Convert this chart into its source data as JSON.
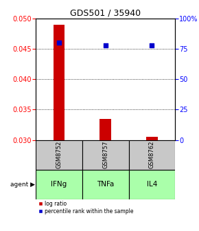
{
  "title": "GDS501 / 35940",
  "samples": [
    "GSM8752",
    "GSM8757",
    "GSM8762"
  ],
  "agents": [
    "IFNg",
    "TNFa",
    "IL4"
  ],
  "log_ratio": [
    0.049,
    0.0335,
    0.0305
  ],
  "percentile_rank": [
    80,
    78,
    78
  ],
  "ylim_left": [
    0.03,
    0.05
  ],
  "ylim_right": [
    0,
    100
  ],
  "yticks_left": [
    0.03,
    0.035,
    0.04,
    0.045,
    0.05
  ],
  "yticks_right": [
    0,
    25,
    50,
    75,
    100
  ],
  "ytick_labels_right": [
    "0",
    "25",
    "50",
    "75",
    "100%"
  ],
  "bar_color": "#cc0000",
  "dot_color": "#0000cc",
  "bar_baseline": 0.03,
  "bar_width": 0.25,
  "gray_bg": "#c8c8c8",
  "green_bg": "#aaffaa",
  "legend_bar_label": "log ratio",
  "legend_dot_label": "percentile rank within the sample",
  "title_fontsize": 9,
  "tick_fontsize": 7,
  "label_fontsize": 7.5
}
